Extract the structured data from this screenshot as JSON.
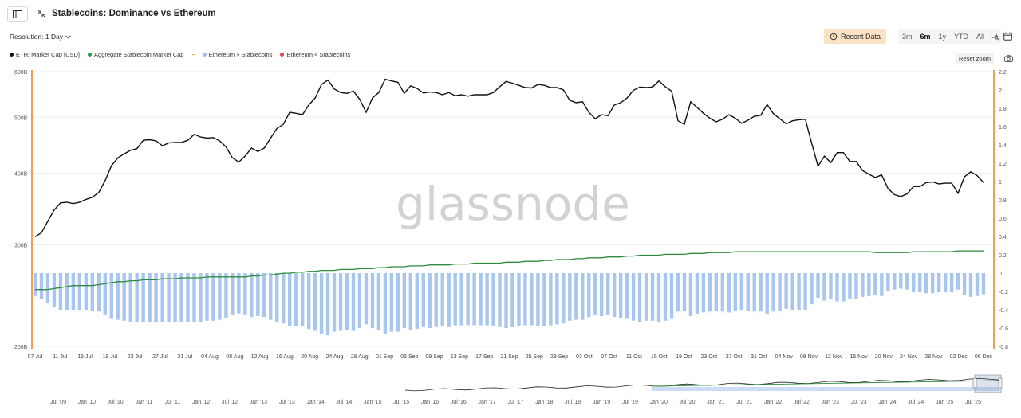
{
  "header": {
    "title": "Stablecoins: Dominance vs Ethereum",
    "resolution_label": "Resolution: 1 Day"
  },
  "toolbar": {
    "recent_data_label": "Recent Data",
    "ranges": [
      {
        "label": "3m",
        "active": false
      },
      {
        "label": "6m",
        "active": true
      },
      {
        "label": "1y",
        "active": false
      },
      {
        "label": "YTD",
        "active": false
      },
      {
        "label": "All",
        "active": false
      }
    ],
    "reset_zoom_label": "Reset zoom"
  },
  "legend": [
    {
      "label": "ETH: Market Cap [USD]",
      "color": "#111111",
      "kind": "dot"
    },
    {
      "label": "Aggregate Stablecoin Market Cap",
      "color": "#2e9b46",
      "kind": "dot"
    },
    {
      "label": "Ethereum > Stablecoins",
      "color": "#9fbff0",
      "kind": "dot",
      "dash_color": "#e0a15d"
    },
    {
      "label": "Ethereum < Stablecoins",
      "color": "#e8415a",
      "kind": "dot"
    }
  ],
  "watermark": "glassnode",
  "colors": {
    "eth": "#111111",
    "stable": "#2e8b3e",
    "bars": "#a9c6ef",
    "axis_marker": "#e8801f",
    "grid": "#eeeeee"
  },
  "chart_data": {
    "type": "line",
    "title": "Stablecoins: Dominance vs Ethereum",
    "x_start": "2025-07-07",
    "x_end": "2025-12-06",
    "x_ticks": [
      "07 Jul",
      "11 Jul",
      "15 Jul",
      "19 Jul",
      "23 Jul",
      "27 Jul",
      "31 Jul",
      "04 Aug",
      "08 Aug",
      "12 Aug",
      "16 Aug",
      "20 Aug",
      "24 Aug",
      "28 Aug",
      "01 Sep",
      "05 Sep",
      "09 Sep",
      "13 Sep",
      "17 Sep",
      "21 Sep",
      "25 Sep",
      "29 Sep",
      "03 Oct",
      "07 Oct",
      "11 Oct",
      "15 Oct",
      "19 Oct",
      "23 Oct",
      "27 Oct",
      "31 Oct",
      "04 Nov",
      "08 Nov",
      "12 Nov",
      "16 Nov",
      "20 Nov",
      "24 Nov",
      "28 Nov",
      "02 Dec",
      "06 Dec"
    ],
    "y_left": {
      "scale": "log",
      "ticks": [
        {
          "value": 200,
          "label": "200B"
        },
        {
          "value": 300,
          "label": "300B"
        },
        {
          "value": 400,
          "label": "400B"
        },
        {
          "value": 500,
          "label": "500B"
        },
        {
          "value": 600,
          "label": "600B"
        }
      ],
      "range": [
        200,
        600
      ]
    },
    "y_right": {
      "scale": "linear",
      "ticks": [
        "2.2",
        "2",
        "1.8",
        "1.6",
        "1.4",
        "1.2",
        "1",
        "0.8",
        "0.6",
        "0.4",
        "0.2",
        "0",
        "-0.2",
        "-0.4",
        "-0.6",
        "-0.8"
      ],
      "range": [
        -0.8,
        2.2
      ]
    },
    "series": [
      {
        "name": "ETH: Market Cap [USD]",
        "axis": "left",
        "values": [
          310,
          315,
          330,
          345,
          355,
          356,
          354,
          356,
          360,
          363,
          370,
          388,
          412,
          425,
          432,
          438,
          441,
          456,
          457,
          455,
          446,
          451,
          452,
          452,
          456,
          467,
          462,
          460,
          461,
          455,
          444,
          425,
          418,
          428,
          442,
          436,
          442,
          460,
          478,
          486,
          510,
          508,
          505,
          525,
          540,
          570,
          580,
          560,
          552,
          550,
          555,
          537,
          510,
          540,
          552,
          582,
          578,
          575,
          550,
          567,
          561,
          551,
          553,
          552,
          547,
          552,
          545,
          547,
          544,
          547,
          547,
          547,
          552,
          565,
          577,
          573,
          568,
          563,
          562,
          570,
          568,
          563,
          563,
          558,
          535,
          530,
          532,
          510,
          497,
          505,
          503,
          525,
          530,
          540,
          557,
          564,
          563,
          564,
          578,
          565,
          555,
          493,
          486,
          532,
          520,
          508,
          498,
          491,
          496,
          505,
          498,
          488,
          494,
          502,
          504,
          526,
          507,
          497,
          487,
          493,
          495,
          496,
          451,
          411,
          428,
          417,
          434,
          434,
          419,
          419,
          404,
          398,
          393,
          397,
          376,
          367,
          364,
          368,
          379,
          379,
          385,
          386,
          383,
          384,
          384,
          369,
          394,
          402,
          396,
          385
        ],
        "color": "#111111"
      },
      {
        "name": "Aggregate Stablecoin Market Cap",
        "axis": "left",
        "values": [
          251,
          251,
          251,
          252,
          253,
          254,
          255,
          255,
          255,
          255,
          256,
          257,
          258,
          259,
          259,
          260,
          260,
          261,
          261,
          261,
          262,
          262,
          262,
          263,
          263,
          263,
          263,
          264,
          264,
          264,
          264,
          264,
          264,
          264,
          265,
          265,
          266,
          266,
          267,
          268,
          268,
          269,
          269,
          270,
          270,
          271,
          271,
          271,
          272,
          272,
          272,
          273,
          273,
          273,
          274,
          274,
          275,
          275,
          275,
          276,
          276,
          276,
          277,
          277,
          277,
          277,
          278,
          278,
          278,
          279,
          279,
          279,
          279,
          279,
          280,
          280,
          280,
          281,
          281,
          281,
          282,
          282,
          283,
          283,
          283,
          284,
          284,
          285,
          285,
          285,
          286,
          286,
          286,
          287,
          287,
          288,
          288,
          288,
          288,
          289,
          289,
          289,
          289,
          290,
          290,
          290,
          291,
          291,
          291,
          291,
          292,
          292,
          292,
          292,
          292,
          292,
          292,
          292,
          292,
          292,
          292,
          292,
          292,
          292,
          292,
          292,
          292,
          292,
          292,
          292,
          292,
          292,
          291,
          291,
          291,
          291,
          291,
          291,
          292,
          292,
          292,
          292,
          292,
          292,
          292,
          293,
          293,
          293,
          293,
          293
        ],
        "color": "#2e8b3e"
      },
      {
        "name": "Ethereum > Stablecoins",
        "axis": "right",
        "type": "bar",
        "values": [
          -0.25,
          -0.28,
          -0.33,
          -0.37,
          -0.4,
          -0.4,
          -0.4,
          -0.4,
          -0.4,
          -0.41,
          -0.42,
          -0.46,
          -0.5,
          -0.51,
          -0.52,
          -0.53,
          -0.53,
          -0.54,
          -0.54,
          -0.54,
          -0.53,
          -0.53,
          -0.53,
          -0.53,
          -0.53,
          -0.54,
          -0.53,
          -0.52,
          -0.52,
          -0.51,
          -0.49,
          -0.46,
          -0.44,
          -0.46,
          -0.48,
          -0.47,
          -0.48,
          -0.51,
          -0.54,
          -0.55,
          -0.58,
          -0.58,
          -0.58,
          -0.61,
          -0.63,
          -0.66,
          -0.68,
          -0.64,
          -0.63,
          -0.62,
          -0.63,
          -0.6,
          -0.56,
          -0.6,
          -0.62,
          -0.66,
          -0.64,
          -0.64,
          -0.6,
          -0.62,
          -0.61,
          -0.59,
          -0.6,
          -0.59,
          -0.58,
          -0.59,
          -0.57,
          -0.57,
          -0.57,
          -0.57,
          -0.57,
          -0.57,
          -0.58,
          -0.59,
          -0.6,
          -0.59,
          -0.58,
          -0.57,
          -0.57,
          -0.58,
          -0.58,
          -0.57,
          -0.56,
          -0.55,
          -0.52,
          -0.51,
          -0.51,
          -0.48,
          -0.46,
          -0.47,
          -0.46,
          -0.48,
          -0.49,
          -0.5,
          -0.52,
          -0.53,
          -0.52,
          -0.52,
          -0.54,
          -0.52,
          -0.5,
          -0.42,
          -0.41,
          -0.47,
          -0.45,
          -0.43,
          -0.42,
          -0.41,
          -0.42,
          -0.43,
          -0.41,
          -0.4,
          -0.41,
          -0.42,
          -0.42,
          -0.45,
          -0.42,
          -0.41,
          -0.39,
          -0.4,
          -0.4,
          -0.4,
          -0.34,
          -0.27,
          -0.3,
          -0.28,
          -0.31,
          -0.31,
          -0.28,
          -0.28,
          -0.26,
          -0.25,
          -0.24,
          -0.25,
          -0.2,
          -0.18,
          -0.17,
          -0.18,
          -0.21,
          -0.21,
          -0.22,
          -0.22,
          -0.21,
          -0.21,
          -0.21,
          -0.18,
          -0.24,
          -0.26,
          -0.25,
          -0.23
        ],
        "color": "#a9c6ef"
      }
    ],
    "navigator_ticks": [
      "Jul '09",
      "Jan '10",
      "Jul '10",
      "Jan '11",
      "Jul '11",
      "Jan '12",
      "Jul '12",
      "Jan '13",
      "Jul '13",
      "Jan '14",
      "Jul '14",
      "Jan '15",
      "Jul '15",
      "Jan '16",
      "Jul '16",
      "Jan '17",
      "Jul '17",
      "Jan '18",
      "Jul '18",
      "Jan '19",
      "Jul '19",
      "Jan '20",
      "Jul '20",
      "Jan '21",
      "Jul '21",
      "Jan '22",
      "Jul '22",
      "Jan '23",
      "Jul '23",
      "Jan '24",
      "Jul '24",
      "Jan '25",
      "Jul '25"
    ]
  }
}
